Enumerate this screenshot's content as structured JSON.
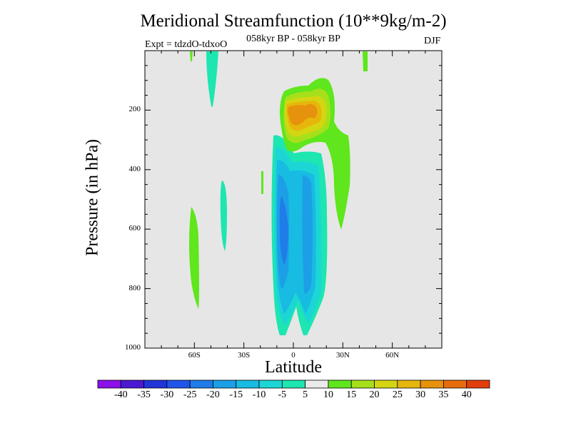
{
  "chart_data": {
    "type": "heatmap",
    "title": "Meridional Streamfunction (10**9kg/m-2)",
    "subtitle": "058kyr BP - 058kyr BP",
    "experiment": "Expt = tdzdO-tdxoO",
    "season": "DJF",
    "xlabel": "Latitude",
    "ylabel": "Pressure (in hPa)",
    "xlim": [
      -90,
      90
    ],
    "ylim": [
      1000,
      0
    ],
    "x_ticks": [
      {
        "value": -60,
        "label": "60S"
      },
      {
        "value": -30,
        "label": "30S"
      },
      {
        "value": 0,
        "label": "0"
      },
      {
        "value": 30,
        "label": "30N"
      },
      {
        "value": 60,
        "label": "60N"
      }
    ],
    "y_ticks": [
      {
        "value": 200,
        "label": "200"
      },
      {
        "value": 400,
        "label": "400"
      },
      {
        "value": 600,
        "label": "600"
      },
      {
        "value": 800,
        "label": "800"
      },
      {
        "value": 1000,
        "label": "1000"
      }
    ],
    "colorbar": {
      "levels": [
        -40,
        -35,
        -30,
        -25,
        -20,
        -15,
        -10,
        -5,
        5,
        10,
        15,
        20,
        25,
        30,
        35,
        40
      ],
      "colors": [
        "#8a12e8",
        "#4b18d4",
        "#2233d8",
        "#2055ea",
        "#1f7ce8",
        "#1c9fe6",
        "#18bbe2",
        "#1cd6d6",
        "#1de6b0",
        "#eaeaea",
        "#5fe61c",
        "#a6e01a",
        "#d4d612",
        "#e6b60c",
        "#e6920c",
        "#e66c0c",
        "#e23e0c"
      ]
    },
    "features": [
      {
        "name": "northern-hemisphere positive cell",
        "lat_center": 10,
        "pressure_center": 200,
        "max_level": 25
      },
      {
        "name": "tropical negative cell",
        "lat_center": -3,
        "pressure_center": 600,
        "min_level": -25
      },
      {
        "name": "southern negative band",
        "lat_center": -40,
        "pressure_center": 550,
        "min_level": -10
      },
      {
        "name": "southern positive band",
        "lat_center": -62,
        "pressure_center": 580,
        "max_level": 10
      }
    ]
  }
}
